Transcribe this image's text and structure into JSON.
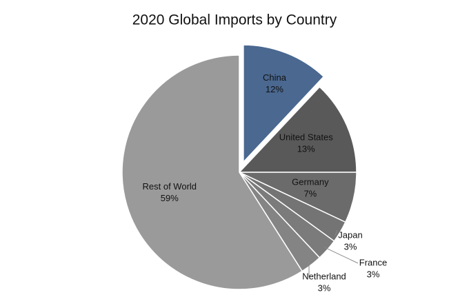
{
  "chart_data": {
    "type": "pie",
    "title": "2020 Global Imports by Country",
    "categories": [
      "China",
      "United States",
      "Germany",
      "Japan",
      "France",
      "Netherland",
      "Rest of World"
    ],
    "values": [
      12,
      13,
      7,
      3,
      3,
      3,
      59
    ],
    "value_labels": [
      "12%",
      "13%",
      "7%",
      "3%",
      "3%",
      "3%",
      "59%"
    ],
    "colors": [
      "#4a6890",
      "#595959",
      "#6b6b6b",
      "#747474",
      "#7b7b7b",
      "#848484",
      "#9a9a9a"
    ],
    "exploded": [
      0
    ]
  }
}
